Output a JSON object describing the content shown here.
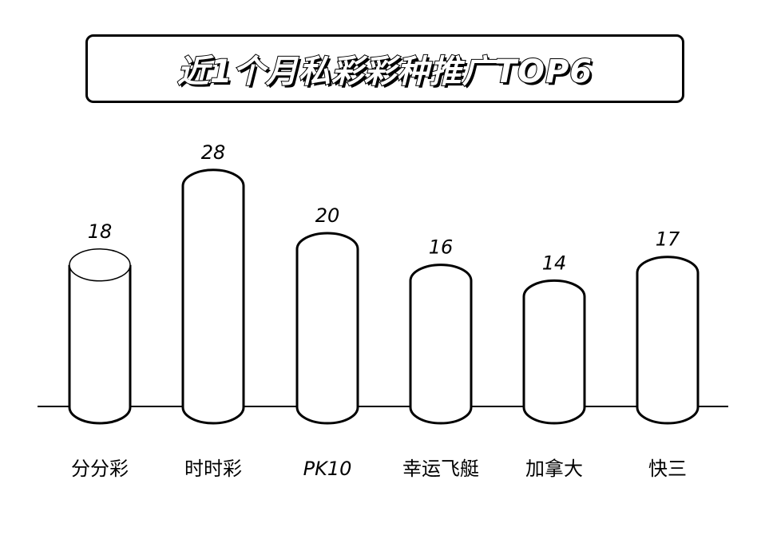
{
  "chart_data": {
    "type": "bar",
    "title": "近1个月私彩彩种推广TOP6",
    "categories": [
      "分分彩",
      "时时彩",
      "PK10",
      "幸运飞艇",
      "加拿大",
      "快三"
    ],
    "values": [
      18,
      28,
      20,
      16,
      14,
      17
    ],
    "style": "3d-cylinder",
    "grid": false,
    "xlabel": "",
    "ylabel": ""
  }
}
